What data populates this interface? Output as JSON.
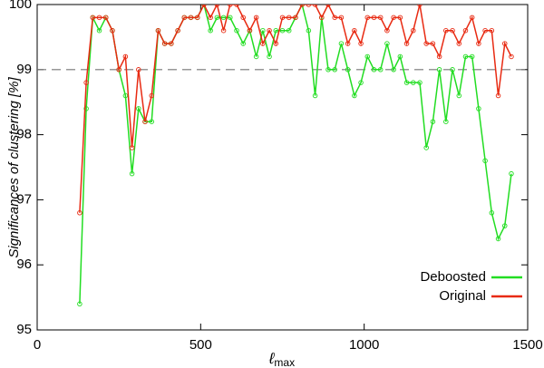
{
  "chart_data": {
    "type": "line",
    "ylabel": "Significances of clustering [%]",
    "xlabel_symbol": "ℓ",
    "xlabel_subscript": "max",
    "x": [
      130,
      150,
      170,
      190,
      210,
      230,
      250,
      270,
      290,
      310,
      330,
      350,
      370,
      390,
      410,
      430,
      450,
      470,
      490,
      510,
      530,
      550,
      570,
      590,
      610,
      630,
      650,
      670,
      690,
      710,
      730,
      750,
      770,
      790,
      810,
      830,
      850,
      870,
      890,
      910,
      930,
      950,
      970,
      990,
      1010,
      1030,
      1050,
      1070,
      1090,
      1110,
      1130,
      1150,
      1170,
      1190,
      1210,
      1230,
      1250,
      1270,
      1290,
      1310,
      1330,
      1350,
      1370,
      1390,
      1410,
      1430,
      1450
    ],
    "series": [
      {
        "name": "Deboosted",
        "color": "#22dd22",
        "values": [
          95.4,
          98.4,
          99.8,
          99.6,
          99.8,
          99.6,
          99.0,
          98.6,
          97.4,
          98.4,
          98.2,
          98.2,
          99.6,
          99.4,
          99.4,
          99.6,
          99.8,
          99.8,
          99.8,
          100,
          99.6,
          99.8,
          99.8,
          99.8,
          99.6,
          99.4,
          99.6,
          99.2,
          99.6,
          99.2,
          99.6,
          99.6,
          99.6,
          99.8,
          100,
          99.6,
          98.6,
          99.8,
          99.0,
          99.0,
          99.4,
          99.0,
          98.6,
          98.8,
          99.2,
          99.0,
          99.0,
          99.4,
          99.0,
          99.2,
          98.8,
          98.8,
          98.8,
          97.8,
          98.2,
          99.0,
          98.2,
          99.0,
          98.6,
          99.2,
          99.2,
          98.4,
          97.6,
          96.8,
          96.4,
          96.6,
          97.4
        ]
      },
      {
        "name": "Original",
        "color": "#e82a12",
        "values": [
          96.8,
          98.8,
          99.8,
          99.8,
          99.8,
          99.6,
          99.0,
          99.2,
          97.8,
          99.0,
          98.2,
          98.6,
          99.6,
          99.4,
          99.4,
          99.6,
          99.8,
          99.8,
          99.8,
          100,
          99.8,
          100,
          99.6,
          100,
          100,
          99.8,
          99.6,
          99.8,
          99.4,
          99.6,
          99.4,
          99.8,
          99.8,
          99.8,
          100,
          100,
          100,
          99.8,
          100,
          99.8,
          99.8,
          99.4,
          99.6,
          99.4,
          99.8,
          99.8,
          99.8,
          99.6,
          99.8,
          99.8,
          99.4,
          99.6,
          100,
          99.4,
          99.4,
          99.2,
          99.6,
          99.6,
          99.4,
          99.6,
          99.8,
          99.4,
          99.6,
          99.6,
          98.6,
          99.4,
          99.2
        ]
      }
    ],
    "reference_line": 99,
    "xlim": [
      0,
      1500
    ],
    "xticks": [
      0,
      500,
      1000,
      1500
    ],
    "ylim": [
      95,
      100
    ],
    "yticks": [
      95,
      96,
      97,
      98,
      99,
      100
    ],
    "legend": "lower right"
  }
}
